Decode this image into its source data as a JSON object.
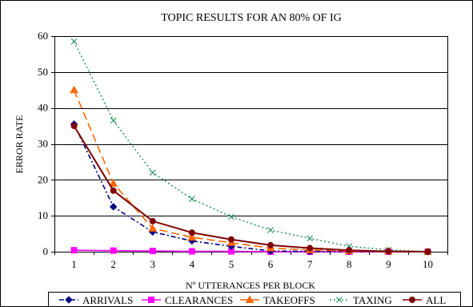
{
  "chart_data": {
    "type": "line",
    "title": "TOPIC RESULTS FOR AN 80% OF IG",
    "xlabel": "Nº UTTERANCES PER BLOCK",
    "ylabel": "ERROR RATE",
    "x": [
      1,
      2,
      3,
      4,
      5,
      6,
      7,
      8,
      9,
      10
    ],
    "x_tick_labels": [
      "1",
      "2",
      "3",
      "4",
      "5",
      "6",
      "7",
      "8",
      "9",
      "10"
    ],
    "ylim": [
      0,
      60
    ],
    "y_ticks": [
      0,
      10,
      20,
      30,
      40,
      50,
      60
    ],
    "y_tick_labels": [
      "0",
      "10",
      "20",
      "30",
      "40",
      "50",
      "60"
    ],
    "grid": "horizontal",
    "legend_position": "bottom",
    "series": [
      {
        "name": "ARRIVALS",
        "values": [
          35.5,
          12.5,
          5.5,
          3.0,
          1.5,
          0.2,
          0.1,
          0.1,
          0.1,
          0.0
        ],
        "color": "#000080",
        "line_style": "dash-dot",
        "marker": "diamond"
      },
      {
        "name": "CLEARANCES",
        "values": [
          0.4,
          0.3,
          0.2,
          0.1,
          0.1,
          0.0,
          0.0,
          0.0,
          0.0,
          0.0
        ],
        "color": "#FF00FF",
        "line_style": "solid",
        "marker": "square"
      },
      {
        "name": "TAKEOFFS",
        "values": [
          45.0,
          19.0,
          6.5,
          4.0,
          2.5,
          1.0,
          0.5,
          0.2,
          0.1,
          0.0
        ],
        "color": "#FF6600",
        "line_style": "long-dash",
        "marker": "triangle"
      },
      {
        "name": "TAXING",
        "values": [
          58.5,
          36.5,
          22.0,
          14.7,
          9.7,
          6.0,
          3.7,
          1.5,
          0.5,
          0.0
        ],
        "color": "#339966",
        "line_style": "dotted",
        "marker": "x"
      },
      {
        "name": "ALL",
        "values": [
          35.0,
          17.0,
          8.5,
          5.3,
          3.4,
          1.8,
          1.0,
          0.4,
          0.1,
          0.0
        ],
        "color": "#800000",
        "line_style": "solid",
        "marker": "circle"
      }
    ]
  }
}
